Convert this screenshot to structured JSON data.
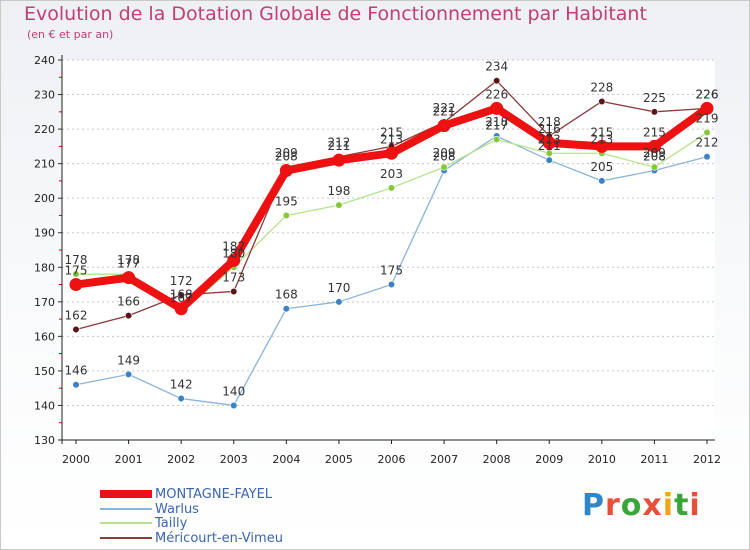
{
  "title": "Evolution de la Dotation Globale de Fonctionnement par Habitant",
  "subtitle": "(en € et par an)",
  "logo_text": "Proxiti",
  "colors": {
    "title": "#c0406f",
    "axis": "#333333",
    "grid": "#c8c8c8"
  },
  "chart_data": {
    "type": "line",
    "title": "Evolution de la Dotation Globale de Fonctionnement par Habitant",
    "subtitle": "(en € et par an)",
    "xlabel": "",
    "ylabel": "",
    "x": [
      "2000",
      "2001",
      "2002",
      "2003",
      "2004",
      "2005",
      "2006",
      "2007",
      "2008",
      "2009",
      "2010",
      "2011",
      "2012"
    ],
    "ylim": [
      130,
      240
    ],
    "yticks": [
      130,
      140,
      150,
      160,
      170,
      180,
      190,
      200,
      210,
      220,
      230,
      240
    ],
    "grid": true,
    "legend_position": "bottom-left",
    "series": [
      {
        "name": "MONTAGNE-FAYEL",
        "color": "#ee1111",
        "marker": "#ee1111",
        "width": 8,
        "r": 6,
        "values": [
          175,
          177,
          168,
          182,
          208,
          211,
          213,
          221,
          226,
          216,
          215,
          215,
          226
        ]
      },
      {
        "name": "Warlus",
        "color": "#8ab4da",
        "marker": "#3b82c4",
        "width": 1.3,
        "r": 3.3,
        "values": [
          146,
          149,
          142,
          140,
          168,
          170,
          175,
          208,
          218,
          211,
          205,
          208,
          212
        ]
      },
      {
        "name": "Tailly",
        "color": "#b6e48c",
        "marker": "#86c83c",
        "width": 1.3,
        "r": 3.3,
        "values": [
          178,
          178,
          167,
          180,
          195,
          198,
          203,
          209,
          217,
          213,
          213,
          209,
          219
        ]
      },
      {
        "name": "Méricourt-en-Vimeu",
        "color": "#8c3a3a",
        "marker": "#5c1416",
        "width": 1.3,
        "r": 3.3,
        "values": [
          162,
          166,
          172,
          173,
          209,
          212,
          215,
          222,
          234,
          218,
          228,
          225,
          226
        ]
      }
    ]
  }
}
